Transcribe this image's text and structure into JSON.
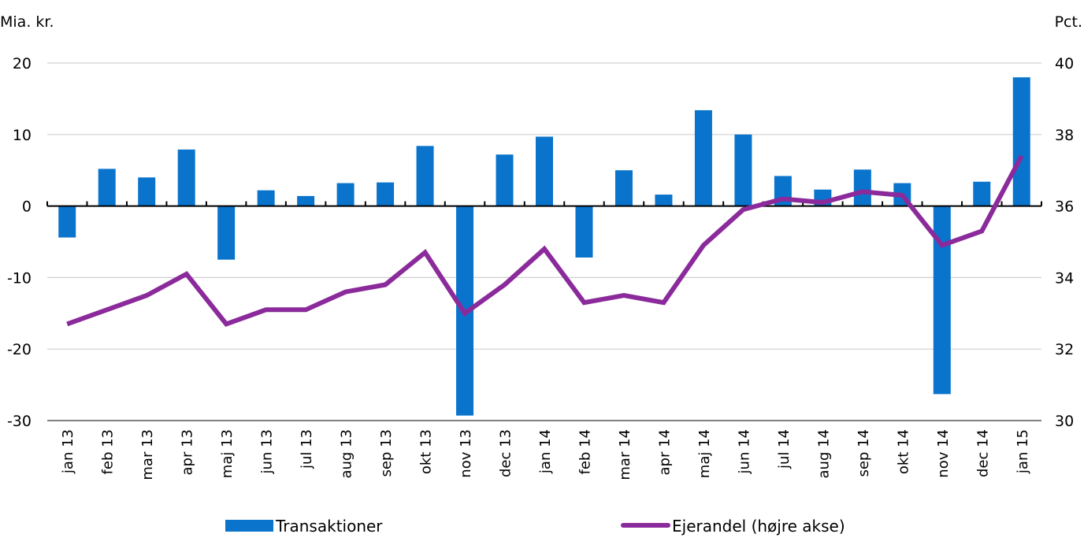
{
  "chart_data": {
    "type": "bar",
    "title": "",
    "categories": [
      "jan 13",
      "feb 13",
      "mar 13",
      "apr 13",
      "maj 13",
      "jun 13",
      "jul 13",
      "aug 13",
      "sep 13",
      "okt 13",
      "nov 13",
      "dec 13",
      "jan 14",
      "feb 14",
      "mar 14",
      "apr 14",
      "maj 14",
      "jun 14",
      "jul 14",
      "aug 14",
      "sep 14",
      "okt 14",
      "nov 14",
      "dec 14",
      "jan 15"
    ],
    "left_axis": {
      "label": "Mia. kr.",
      "ylim": [
        -30,
        20
      ],
      "ticks": [
        20,
        10,
        0,
        -10,
        -20,
        -30
      ],
      "tick_labels": [
        "20",
        "10",
        "0",
        "-10",
        "-20",
        "-30"
      ]
    },
    "right_axis": {
      "label": "Pct.",
      "ylim": [
        30,
        40
      ],
      "ticks": [
        40,
        38,
        36,
        34,
        32,
        30
      ],
      "tick_labels": [
        "40",
        "38",
        "36",
        "34",
        "32",
        "30"
      ]
    },
    "grid": true,
    "legend_position": "bottom",
    "series": [
      {
        "name": "Transaktioner",
        "type": "bar",
        "axis": "left",
        "color": "#0A74CC",
        "values": [
          -4.4,
          5.2,
          4.0,
          7.9,
          -7.5,
          2.2,
          1.4,
          3.2,
          3.3,
          8.4,
          -29.3,
          7.2,
          9.7,
          -7.2,
          5.0,
          1.6,
          13.4,
          10.0,
          4.2,
          2.3,
          5.1,
          3.2,
          -26.3,
          3.4,
          18.0
        ]
      },
      {
        "name": "Ejerandel (højre akse)",
        "type": "line",
        "axis": "right",
        "color": "#8B2A9B",
        "values": [
          32.7,
          33.1,
          33.5,
          34.1,
          32.7,
          33.1,
          33.1,
          33.6,
          33.8,
          34.7,
          33.0,
          33.8,
          34.8,
          33.3,
          33.5,
          33.3,
          34.9,
          35.9,
          36.2,
          36.1,
          36.4,
          36.3,
          34.9,
          35.3,
          37.4
        ]
      }
    ]
  }
}
